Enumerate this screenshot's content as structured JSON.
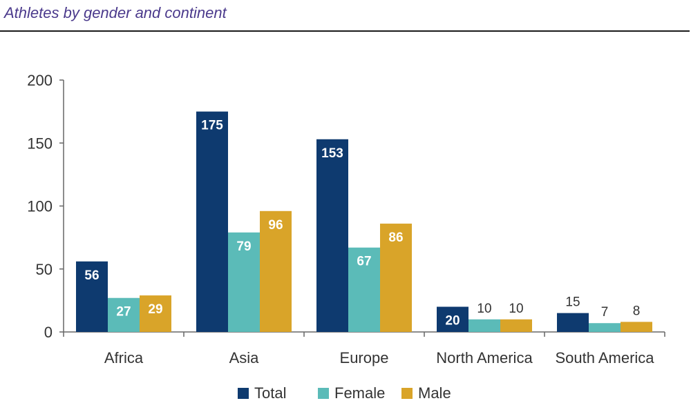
{
  "chart_data": {
    "type": "bar",
    "title": "Athletes by gender and continent",
    "categories": [
      "Africa",
      "Asia",
      "Europe",
      "North America",
      "South America"
    ],
    "series": [
      {
        "name": "Total",
        "values": [
          56,
          175,
          153,
          20,
          15
        ],
        "color": "#0e3a6f"
      },
      {
        "name": "Female",
        "values": [
          27,
          79,
          67,
          10,
          7
        ],
        "color": "#5bbbb8"
      },
      {
        "name": "Male",
        "values": [
          29,
          96,
          86,
          10,
          8
        ],
        "color": "#d9a429"
      }
    ],
    "yticks": [
      0,
      50,
      100,
      150,
      200
    ],
    "ylim": [
      0,
      200
    ],
    "legend_position": "bottom",
    "grid": false
  }
}
